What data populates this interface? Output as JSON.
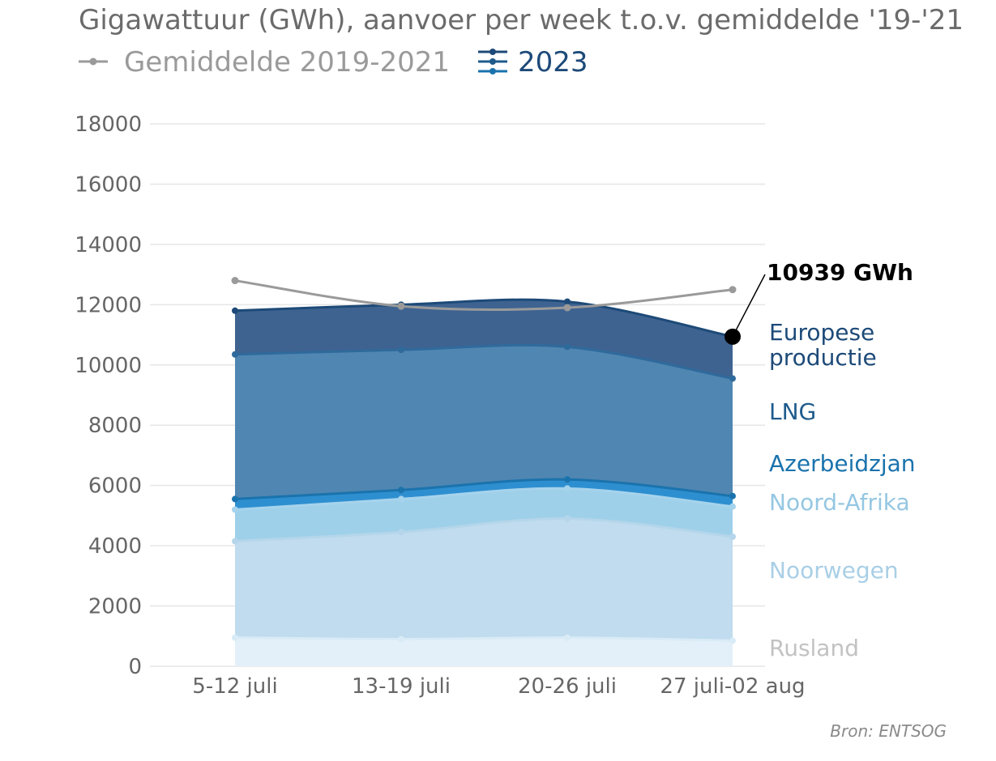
{
  "chart_data": {
    "type": "area",
    "title": "Gigawattuur (GWh), aanvoer per week t.o.v. gemiddelde '19-'21",
    "ylabel": "",
    "xlabel": "",
    "ylim": [
      0,
      18000
    ],
    "yticks": [
      0,
      2000,
      4000,
      6000,
      8000,
      10000,
      12000,
      14000,
      16000,
      18000
    ],
    "categories": [
      "5-12 juli",
      "13-19 juli",
      "20-26 juli",
      "27 juli-02 aug"
    ],
    "legend": {
      "average_label": "Gemiddelde 2019-2021",
      "current_label": "2023"
    },
    "stacked_series": [
      {
        "name": "Rusland",
        "values": [
          950,
          900,
          950,
          850
        ],
        "color": "#e3f0f9",
        "label_color": "#c2c2c2"
      },
      {
        "name": "Noorwegen",
        "values": [
          3200,
          3550,
          3950,
          3450
        ],
        "color": "#c0dcee",
        "label_color": "#a9cfe6"
      },
      {
        "name": "Noord-Afrika",
        "values": [
          1050,
          1100,
          1000,
          1000
        ],
        "color": "#9fd0ea",
        "label_color": "#95c7e2"
      },
      {
        "name": "Azerbeidzjan",
        "values": [
          350,
          300,
          300,
          350
        ],
        "color": "#2e8fd0",
        "label_color": "#1a73ad"
      },
      {
        "name": "LNG",
        "values": [
          4800,
          4650,
          4400,
          3900
        ],
        "color": "#5086b2",
        "label_color": "#1f5b8c"
      },
      {
        "name": "Europese productie",
        "values": [
          1450,
          1500,
          1500,
          1389
        ],
        "color": "#3e6391",
        "label_color": "#1d4a78"
      }
    ],
    "average_series": {
      "name": "Gemiddelde 2019-2021",
      "values": [
        12800,
        11950,
        11900,
        12500
      ],
      "color": "#9a9a9a"
    },
    "annotation": {
      "text": "10939 GWh",
      "value": 10939,
      "category": "27 juli-02 aug"
    },
    "source": "Bron: ENTSOG"
  }
}
